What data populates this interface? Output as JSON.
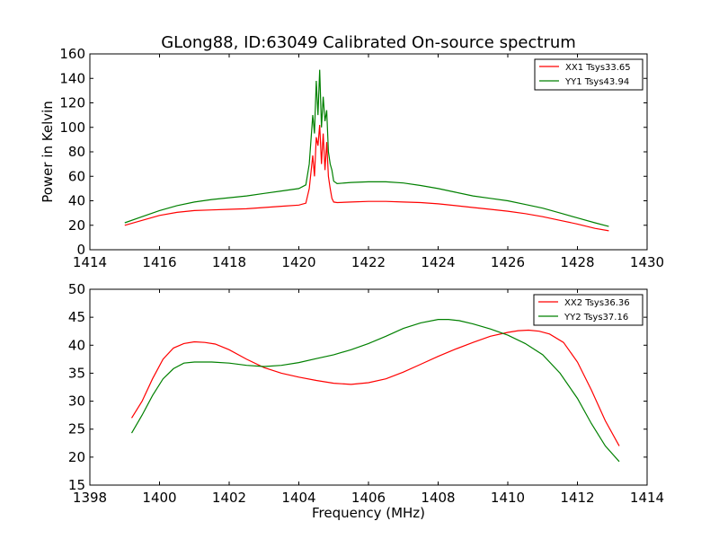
{
  "chart_data": [
    {
      "type": "line",
      "title": "GLong88, ID:63049 Calibrated On-source spectrum",
      "xlabel": "",
      "ylabel": "Power in Kelvin",
      "xlim": [
        1414,
        1430
      ],
      "ylim": [
        0,
        160
      ],
      "xticks": [
        1414,
        1416,
        1418,
        1420,
        1422,
        1424,
        1426,
        1428,
        1430
      ],
      "yticks": [
        0,
        20,
        40,
        60,
        80,
        100,
        120,
        140,
        160
      ],
      "grid": false,
      "legend_position": "top-right",
      "series": [
        {
          "name": "XX1 Tsys33.65",
          "color": "#ff0000",
          "x": [
            1415.0,
            1415.5,
            1416.0,
            1416.5,
            1417.0,
            1417.5,
            1418.0,
            1418.5,
            1419.0,
            1419.5,
            1420.0,
            1420.2,
            1420.3,
            1420.4,
            1420.45,
            1420.5,
            1420.55,
            1420.6,
            1420.65,
            1420.7,
            1420.75,
            1420.8,
            1420.85,
            1420.9,
            1420.95,
            1421.0,
            1421.1,
            1421.5,
            1422.0,
            1422.5,
            1423.0,
            1423.5,
            1424.0,
            1424.5,
            1425.0,
            1425.5,
            1426.0,
            1426.5,
            1427.0,
            1427.5,
            1428.0,
            1428.5,
            1428.9
          ],
          "y": [
            20,
            24,
            28,
            30.5,
            32,
            32.5,
            33,
            33.5,
            34.5,
            35.5,
            36.5,
            38,
            50,
            77,
            60,
            92,
            85,
            102,
            70,
            95,
            65,
            88,
            60,
            50,
            42,
            39,
            38.5,
            39,
            39.5,
            39.5,
            39,
            38.5,
            37.5,
            36,
            34.5,
            33,
            31.5,
            29.5,
            27,
            24,
            21,
            17.5,
            15.5
          ]
        },
        {
          "name": "YY1 Tsys43.94",
          "color": "#008000",
          "x": [
            1415.0,
            1415.5,
            1416.0,
            1416.5,
            1417.0,
            1417.5,
            1418.0,
            1418.5,
            1419.0,
            1419.5,
            1420.0,
            1420.2,
            1420.3,
            1420.4,
            1420.45,
            1420.5,
            1420.55,
            1420.6,
            1420.65,
            1420.7,
            1420.75,
            1420.8,
            1420.85,
            1420.9,
            1420.95,
            1421.0,
            1421.1,
            1421.5,
            1422.0,
            1422.5,
            1423.0,
            1423.5,
            1424.0,
            1424.5,
            1425.0,
            1425.5,
            1426.0,
            1426.5,
            1427.0,
            1427.5,
            1428.0,
            1428.5,
            1428.9
          ],
          "y": [
            22,
            27,
            32,
            36,
            39,
            41,
            42.5,
            44,
            46,
            48,
            50,
            53,
            70,
            110,
            95,
            138,
            110,
            147,
            100,
            125,
            105,
            114,
            80,
            70,
            65,
            56,
            54,
            55,
            55.5,
            55.5,
            54.5,
            52.5,
            50,
            47,
            44,
            42,
            40,
            37,
            34,
            30,
            26,
            22,
            19
          ]
        }
      ]
    },
    {
      "type": "line",
      "title": "",
      "xlabel": "Frequency (MHz)",
      "ylabel": "",
      "xlim": [
        1398,
        1414
      ],
      "ylim": [
        15,
        50
      ],
      "xticks": [
        1398,
        1400,
        1402,
        1404,
        1406,
        1408,
        1410,
        1412,
        1414
      ],
      "yticks": [
        15,
        20,
        25,
        30,
        35,
        40,
        45,
        50
      ],
      "grid": false,
      "legend_position": "top-right",
      "series": [
        {
          "name": "XX2 Tsys36.36",
          "color": "#ff0000",
          "x": [
            1399.2,
            1399.5,
            1399.8,
            1400.1,
            1400.4,
            1400.7,
            1401.0,
            1401.3,
            1401.6,
            1402.0,
            1402.5,
            1403.0,
            1403.5,
            1404.0,
            1404.5,
            1405.0,
            1405.5,
            1406.0,
            1406.5,
            1407.0,
            1407.5,
            1408.0,
            1408.5,
            1409.0,
            1409.5,
            1410.0,
            1410.3,
            1410.6,
            1410.9,
            1411.2,
            1411.6,
            1412.0,
            1412.4,
            1412.8,
            1413.2
          ],
          "y": [
            27,
            30,
            34,
            37.5,
            39.5,
            40.3,
            40.6,
            40.5,
            40.2,
            39.2,
            37.5,
            36,
            35,
            34.3,
            33.7,
            33.2,
            33,
            33.3,
            34,
            35.2,
            36.6,
            38,
            39.3,
            40.5,
            41.6,
            42.3,
            42.6,
            42.7,
            42.5,
            42,
            40.5,
            37,
            32,
            26.5,
            22
          ]
        },
        {
          "name": "YY2 Tsys37.16",
          "color": "#008000",
          "x": [
            1399.2,
            1399.5,
            1399.8,
            1400.1,
            1400.4,
            1400.7,
            1401.0,
            1401.5,
            1402.0,
            1402.5,
            1403.0,
            1403.5,
            1404.0,
            1404.5,
            1405.0,
            1405.5,
            1406.0,
            1406.5,
            1407.0,
            1407.5,
            1408.0,
            1408.3,
            1408.6,
            1409.0,
            1409.5,
            1410.0,
            1410.5,
            1411.0,
            1411.5,
            1412.0,
            1412.4,
            1412.8,
            1413.2
          ],
          "y": [
            24.3,
            27.5,
            31,
            34,
            35.8,
            36.8,
            37,
            37,
            36.8,
            36.4,
            36.2,
            36.4,
            36.9,
            37.6,
            38.3,
            39.2,
            40.3,
            41.6,
            43,
            44,
            44.6,
            44.6,
            44.4,
            43.8,
            42.9,
            41.8,
            40.3,
            38.3,
            35,
            30.5,
            26,
            22,
            19.2
          ]
        }
      ]
    }
  ]
}
